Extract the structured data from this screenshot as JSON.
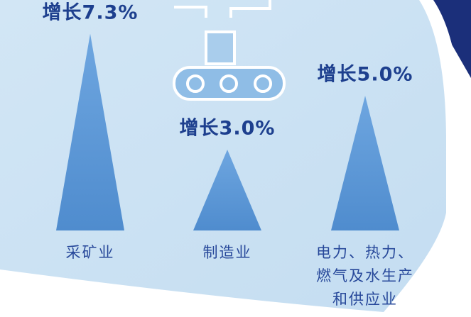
{
  "chart_data": {
    "type": "triangle",
    "categories": [
      "采矿业",
      "制造业",
      "电力、热力、燃气及水生产和供应业"
    ],
    "values": [
      7.3,
      3.0,
      5.0
    ],
    "value_labels": [
      "增长7.3%",
      "增长3.0%",
      "增长5.0%"
    ],
    "color": "#5b97d6"
  }
}
